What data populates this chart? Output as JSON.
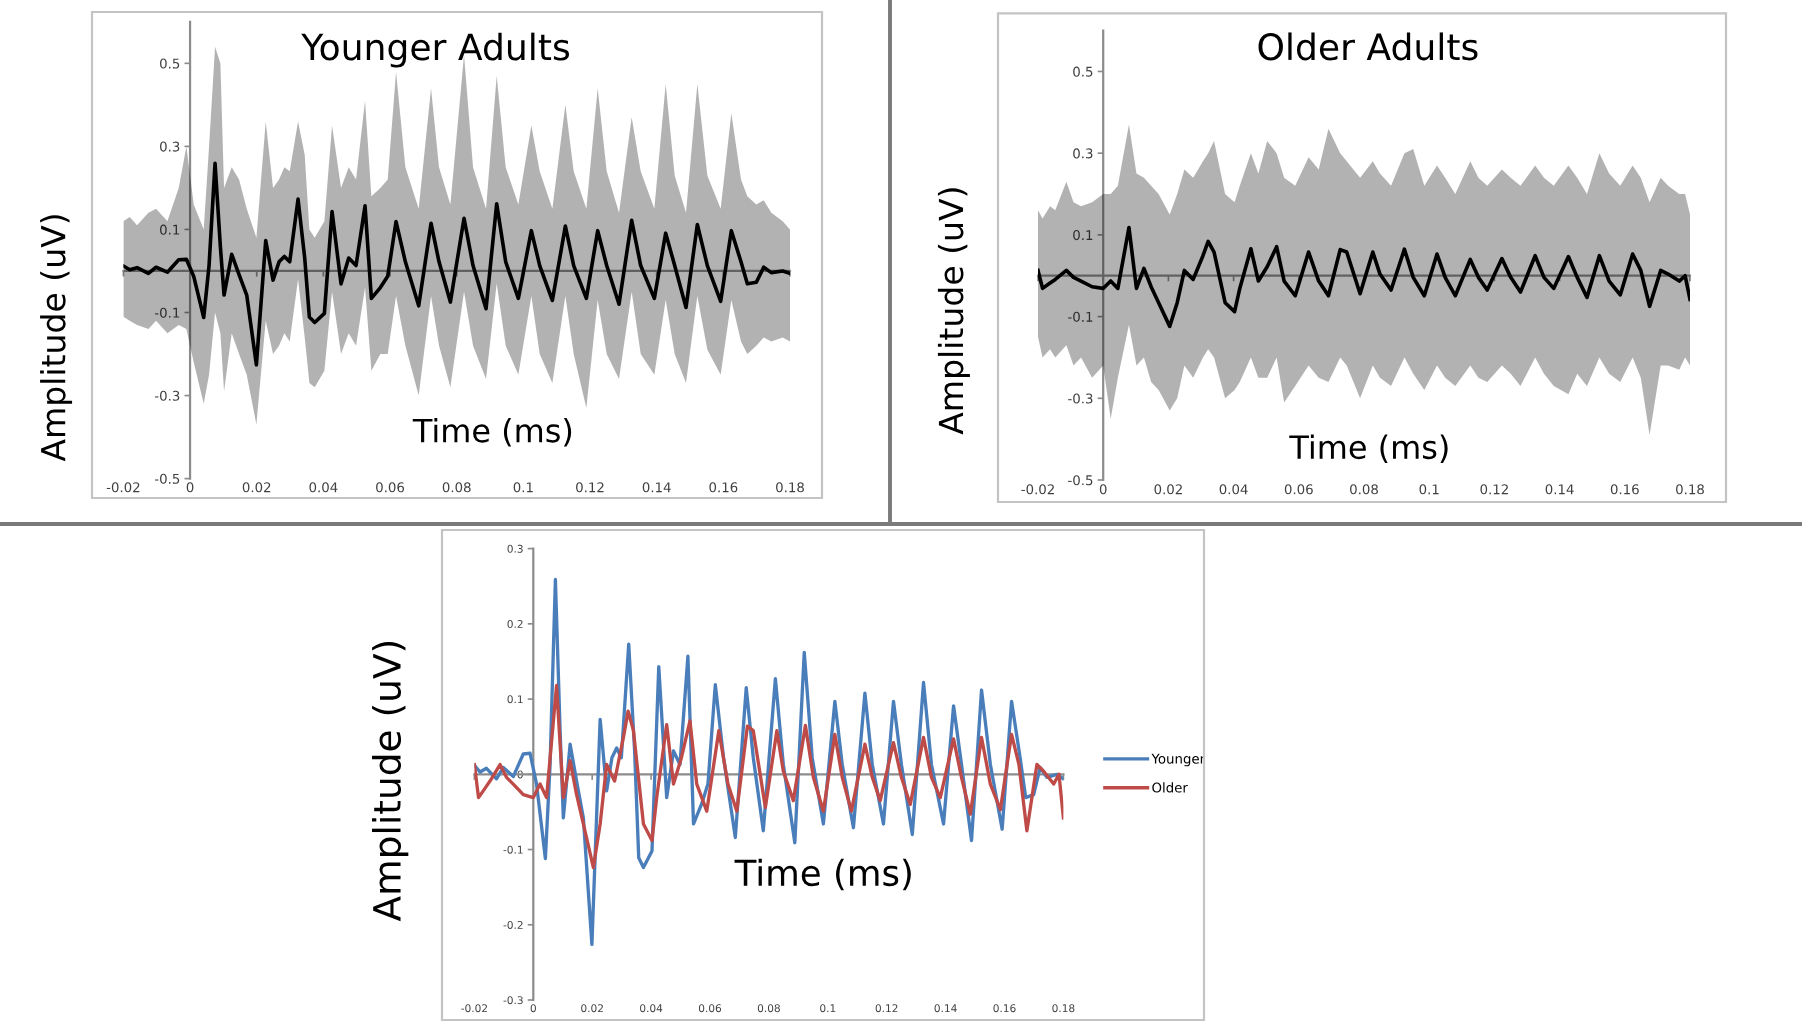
{
  "chart_data": [
    {
      "type": "line",
      "title": "Younger Adults",
      "xlabel": "Time (ms)",
      "ylabel": "Amplitude (uV)",
      "xlim": [
        -0.02,
        0.18
      ],
      "xticks": [
        -0.02,
        0,
        0.02,
        0.04,
        0.06,
        0.08,
        0.1,
        0.12,
        0.14,
        0.16,
        0.18
      ],
      "ylim": [
        -0.5,
        0.6
      ],
      "yticks": [
        -0.5,
        -0.3,
        -0.1,
        0.1,
        0.3,
        0.5
      ],
      "series": [
        {
          "color": "#000000",
          "x": [
            -0.02,
            -0.0181,
            -0.0159,
            -0.0125,
            -0.0102,
            -0.0068,
            -0.0034,
            -0.0011,
            0.0011,
            0.0041,
            0.0057,
            0.0075,
            0.0091,
            0.0102,
            0.0125,
            0.0147,
            0.017,
            0.0199,
            0.0227,
            0.0249,
            0.0267,
            0.0283,
            0.0299,
            0.0324,
            0.0344,
            0.0358,
            0.0374,
            0.0403,
            0.0426,
            0.0453,
            0.0476,
            0.0498,
            0.0525,
            0.0544,
            0.0571,
            0.0593,
            0.0618,
            0.0646,
            0.0686,
            0.0723,
            0.0747,
            0.0781,
            0.0822,
            0.0849,
            0.0888,
            0.092,
            0.0947,
            0.0985,
            0.1024,
            0.1049,
            0.1087,
            0.1126,
            0.1151,
            0.1189,
            0.1223,
            0.125,
            0.1287,
            0.1325,
            0.1352,
            0.1393,
            0.1427,
            0.1454,
            0.1488,
            0.1522,
            0.1552,
            0.1592,
            0.1624,
            0.1653,
            0.1672,
            0.1699,
            0.1721,
            0.1744,
            0.1778,
            0.18
          ],
          "values": [
            0.012,
            0.003,
            0.008,
            -0.006,
            0.009,
            -0.003,
            0.027,
            0.028,
            -0.013,
            -0.112,
            0.013,
            0.259,
            0.058,
            -0.058,
            0.04,
            -0.009,
            -0.058,
            -0.226,
            0.073,
            -0.022,
            0.022,
            0.035,
            0.022,
            0.173,
            0.031,
            -0.111,
            -0.124,
            -0.102,
            0.143,
            -0.031,
            0.031,
            0.013,
            0.157,
            -0.066,
            -0.04,
            -0.013,
            0.119,
            0.022,
            -0.084,
            0.115,
            0.022,
            -0.075,
            0.127,
            0.013,
            -0.091,
            0.162,
            0.022,
            -0.066,
            0.097,
            0.013,
            -0.071,
            0.108,
            0.013,
            -0.066,
            0.097,
            0.013,
            -0.08,
            0.122,
            0.013,
            -0.066,
            0.091,
            0.013,
            -0.088,
            0.112,
            0.013,
            -0.073,
            0.097,
            0.022,
            -0.031,
            -0.027,
            0.009,
            -0.004,
            0,
            -0.006
          ],
          "upper": [
            0.12,
            0.13,
            0.11,
            0.14,
            0.15,
            0.12,
            0.2,
            0.3,
            0.16,
            0.1,
            0.3,
            0.54,
            0.5,
            0.2,
            0.25,
            0.22,
            0.15,
            0.08,
            0.36,
            0.2,
            0.22,
            0.25,
            0.24,
            0.36,
            0.28,
            0.1,
            0.08,
            0.12,
            0.35,
            0.2,
            0.25,
            0.22,
            0.41,
            0.18,
            0.2,
            0.22,
            0.48,
            0.25,
            0.15,
            0.44,
            0.25,
            0.16,
            0.52,
            0.25,
            0.15,
            0.47,
            0.25,
            0.16,
            0.35,
            0.24,
            0.15,
            0.4,
            0.24,
            0.15,
            0.44,
            0.24,
            0.14,
            0.37,
            0.24,
            0.15,
            0.45,
            0.23,
            0.14,
            0.45,
            0.23,
            0.15,
            0.38,
            0.22,
            0.18,
            0.16,
            0.17,
            0.14,
            0.12,
            0.1
          ],
          "lower": [
            -0.11,
            -0.12,
            -0.13,
            -0.14,
            -0.12,
            -0.15,
            -0.13,
            -0.14,
            -0.22,
            -0.32,
            -0.25,
            -0.1,
            -0.15,
            -0.29,
            -0.15,
            -0.2,
            -0.25,
            -0.37,
            -0.12,
            -0.2,
            -0.18,
            -0.15,
            -0.17,
            -0.02,
            -0.16,
            -0.27,
            -0.28,
            -0.24,
            -0.05,
            -0.2,
            -0.15,
            -0.18,
            -0.04,
            -0.24,
            -0.2,
            -0.2,
            -0.06,
            -0.18,
            -0.3,
            -0.06,
            -0.18,
            -0.28,
            -0.05,
            -0.18,
            -0.26,
            -0.03,
            -0.18,
            -0.25,
            -0.06,
            -0.2,
            -0.27,
            -0.06,
            -0.2,
            -0.33,
            -0.07,
            -0.2,
            -0.26,
            -0.05,
            -0.2,
            -0.25,
            -0.07,
            -0.2,
            -0.27,
            -0.06,
            -0.19,
            -0.25,
            -0.07,
            -0.17,
            -0.2,
            -0.18,
            -0.16,
            -0.17,
            -0.16,
            -0.17
          ]
        }
      ]
    },
    {
      "type": "line",
      "title": "Older Adults",
      "xlabel": "Time (ms)",
      "ylabel": "Amplitude (uV)",
      "xlim": [
        -0.02,
        0.18
      ],
      "xticks": [
        -0.02,
        0,
        0.02,
        0.04,
        0.06,
        0.08,
        0.1,
        0.12,
        0.14,
        0.16,
        0.18
      ],
      "ylim": [
        -0.5,
        0.6
      ],
      "yticks": [
        -0.5,
        -0.3,
        -0.1,
        0.1,
        0.3,
        0.5
      ],
      "series": [
        {
          "color": "#000000",
          "x": [
            -0.02,
            -0.0186,
            -0.0163,
            -0.0147,
            -0.0113,
            -0.0091,
            -0.0068,
            -0.0034,
            0,
            0.0023,
            0.0045,
            0.0079,
            0.0102,
            0.0125,
            0.0147,
            0.017,
            0.0204,
            0.0227,
            0.0249,
            0.0276,
            0.0306,
            0.0322,
            0.034,
            0.0374,
            0.0403,
            0.0419,
            0.0453,
            0.0476,
            0.0503,
            0.0532,
            0.0555,
            0.0589,
            0.063,
            0.0661,
            0.0691,
            0.0727,
            0.0747,
            0.0788,
            0.0827,
            0.0849,
            0.0883,
            0.0924,
            0.0951,
            0.0985,
            0.1024,
            0.1049,
            0.108,
            0.1126,
            0.1151,
            0.1178,
            0.1223,
            0.125,
            0.128,
            0.1325,
            0.1352,
            0.1382,
            0.1427,
            0.1454,
            0.1484,
            0.1522,
            0.1552,
            0.1586,
            0.1624,
            0.1649,
            0.1676,
            0.171,
            0.1733,
            0.1767,
            0.1785,
            0.18
          ],
          "values": [
            0.013,
            -0.031,
            -0.018,
            -0.009,
            0.013,
            -0.004,
            -0.013,
            -0.027,
            -0.031,
            -0.013,
            -0.031,
            0.118,
            -0.031,
            0.018,
            -0.027,
            -0.066,
            -0.124,
            -0.066,
            0.013,
            -0.009,
            0.049,
            0.084,
            0.058,
            -0.066,
            -0.088,
            -0.031,
            0.066,
            -0.013,
            0.022,
            0.071,
            -0.013,
            -0.049,
            0.058,
            -0.013,
            -0.049,
            0.064,
            0.058,
            -0.044,
            0.058,
            0.004,
            -0.035,
            0.065,
            -0.004,
            -0.049,
            0.053,
            -0.004,
            -0.049,
            0.04,
            -0.004,
            -0.035,
            0.042,
            -0.004,
            -0.04,
            0.049,
            -0.004,
            -0.031,
            0.047,
            -0.004,
            -0.053,
            0.049,
            -0.013,
            -0.047,
            0.053,
            0.013,
            -0.075,
            0.013,
            0.004,
            -0.013,
            0,
            -0.058
          ],
          "upper": [
            0.16,
            0.14,
            0.17,
            0.16,
            0.23,
            0.18,
            0.17,
            0.18,
            0.2,
            0.2,
            0.22,
            0.37,
            0.25,
            0.24,
            0.22,
            0.2,
            0.15,
            0.2,
            0.26,
            0.24,
            0.28,
            0.3,
            0.33,
            0.2,
            0.18,
            0.22,
            0.3,
            0.25,
            0.33,
            0.3,
            0.24,
            0.22,
            0.29,
            0.26,
            0.36,
            0.3,
            0.28,
            0.24,
            0.28,
            0.25,
            0.22,
            0.3,
            0.31,
            0.22,
            0.27,
            0.24,
            0.2,
            0.28,
            0.24,
            0.22,
            0.26,
            0.24,
            0.22,
            0.27,
            0.24,
            0.22,
            0.27,
            0.24,
            0.2,
            0.3,
            0.25,
            0.22,
            0.27,
            0.24,
            0.18,
            0.24,
            0.22,
            0.2,
            0.2,
            0.15
          ],
          "lower": [
            -0.15,
            -0.2,
            -0.18,
            -0.2,
            -0.17,
            -0.22,
            -0.2,
            -0.25,
            -0.22,
            -0.35,
            -0.25,
            -0.12,
            -0.22,
            -0.2,
            -0.26,
            -0.28,
            -0.33,
            -0.3,
            -0.22,
            -0.25,
            -0.2,
            -0.18,
            -0.2,
            -0.3,
            -0.28,
            -0.26,
            -0.2,
            -0.25,
            -0.25,
            -0.2,
            -0.31,
            -0.27,
            -0.22,
            -0.25,
            -0.26,
            -0.2,
            -0.22,
            -0.3,
            -0.22,
            -0.25,
            -0.27,
            -0.2,
            -0.24,
            -0.28,
            -0.22,
            -0.25,
            -0.27,
            -0.22,
            -0.25,
            -0.26,
            -0.22,
            -0.24,
            -0.27,
            -0.2,
            -0.24,
            -0.27,
            -0.29,
            -0.24,
            -0.27,
            -0.2,
            -0.24,
            -0.26,
            -0.2,
            -0.25,
            -0.39,
            -0.22,
            -0.22,
            -0.23,
            -0.2,
            -0.22
          ]
        }
      ]
    },
    {
      "type": "line",
      "xlabel": "Time (ms)",
      "ylabel": "Amplitude (uV)",
      "legend": "right",
      "xlim": [
        -0.02,
        0.18
      ],
      "xticks": [
        -0.02,
        0,
        0.02,
        0.04,
        0.06,
        0.08,
        0.1,
        0.12,
        0.14,
        0.16,
        0.18
      ],
      "ylim": [
        -0.3,
        0.3
      ],
      "yticks": [
        -0.3,
        -0.2,
        -0.1,
        0,
        0.1,
        0.2,
        0.3
      ],
      "series": [
        {
          "name": "Younger",
          "color": "#4a7ebb",
          "x": [
            -0.02,
            -0.0181,
            -0.0159,
            -0.0125,
            -0.0102,
            -0.0068,
            -0.0034,
            -0.0011,
            0.0011,
            0.0041,
            0.0057,
            0.0075,
            0.0091,
            0.0102,
            0.0125,
            0.0147,
            0.017,
            0.0199,
            0.0227,
            0.0249,
            0.0267,
            0.0283,
            0.0299,
            0.0324,
            0.0344,
            0.0358,
            0.0374,
            0.0403,
            0.0426,
            0.0453,
            0.0476,
            0.0498,
            0.0525,
            0.0544,
            0.0571,
            0.0593,
            0.0618,
            0.0646,
            0.0686,
            0.0723,
            0.0747,
            0.0781,
            0.0822,
            0.0849,
            0.0888,
            0.092,
            0.0947,
            0.0985,
            0.1024,
            0.1049,
            0.1087,
            0.1126,
            0.1151,
            0.1189,
            0.1223,
            0.125,
            0.1287,
            0.1325,
            0.1352,
            0.1393,
            0.1427,
            0.1454,
            0.1488,
            0.1522,
            0.1552,
            0.1592,
            0.1624,
            0.1653,
            0.1672,
            0.1699,
            0.1721,
            0.1744,
            0.1778,
            0.18
          ],
          "values": [
            0.012,
            0.003,
            0.008,
            -0.006,
            0.009,
            -0.003,
            0.027,
            0.028,
            -0.013,
            -0.112,
            0.013,
            0.259,
            0.058,
            -0.058,
            0.04,
            -0.009,
            -0.058,
            -0.226,
            0.073,
            -0.022,
            0.022,
            0.035,
            0.022,
            0.173,
            0.031,
            -0.111,
            -0.124,
            -0.102,
            0.143,
            -0.031,
            0.031,
            0.013,
            0.157,
            -0.066,
            -0.04,
            -0.013,
            0.119,
            0.022,
            -0.084,
            0.115,
            0.022,
            -0.075,
            0.127,
            0.013,
            -0.091,
            0.162,
            0.022,
            -0.066,
            0.097,
            0.013,
            -0.071,
            0.108,
            0.013,
            -0.066,
            0.097,
            0.013,
            -0.08,
            0.122,
            0.013,
            -0.066,
            0.091,
            0.013,
            -0.088,
            0.112,
            0.013,
            -0.073,
            0.097,
            0.022,
            -0.031,
            -0.027,
            0.009,
            -0.004,
            0,
            -0.006
          ]
        },
        {
          "name": "Older",
          "color": "#be4b48",
          "x": [
            -0.02,
            -0.0186,
            -0.0163,
            -0.0147,
            -0.0113,
            -0.0091,
            -0.0068,
            -0.0034,
            0,
            0.0023,
            0.0045,
            0.0079,
            0.0102,
            0.0125,
            0.0147,
            0.017,
            0.0204,
            0.0227,
            0.0249,
            0.0276,
            0.0306,
            0.0322,
            0.034,
            0.0374,
            0.0403,
            0.0419,
            0.0453,
            0.0476,
            0.0503,
            0.0532,
            0.0555,
            0.0589,
            0.063,
            0.0661,
            0.0691,
            0.0727,
            0.0747,
            0.0788,
            0.0827,
            0.0849,
            0.0883,
            0.0924,
            0.0951,
            0.0985,
            0.1024,
            0.1049,
            0.108,
            0.1126,
            0.1151,
            0.1178,
            0.1223,
            0.125,
            0.128,
            0.1325,
            0.1352,
            0.1382,
            0.1427,
            0.1454,
            0.1484,
            0.1522,
            0.1552,
            0.1586,
            0.1624,
            0.1649,
            0.1676,
            0.171,
            0.1733,
            0.1767,
            0.1785,
            0.18
          ],
          "values": [
            0.013,
            -0.031,
            -0.018,
            -0.009,
            0.013,
            -0.004,
            -0.013,
            -0.027,
            -0.031,
            -0.013,
            -0.031,
            0.118,
            -0.031,
            0.018,
            -0.027,
            -0.066,
            -0.124,
            -0.066,
            0.013,
            -0.009,
            0.049,
            0.084,
            0.058,
            -0.066,
            -0.088,
            -0.031,
            0.066,
            -0.013,
            0.022,
            0.071,
            -0.013,
            -0.049,
            0.058,
            -0.013,
            -0.049,
            0.064,
            0.058,
            -0.044,
            0.058,
            0.004,
            -0.035,
            0.065,
            -0.004,
            -0.049,
            0.053,
            -0.004,
            -0.049,
            0.04,
            -0.004,
            -0.035,
            0.042,
            -0.004,
            -0.04,
            0.049,
            -0.004,
            -0.031,
            0.047,
            -0.004,
            -0.053,
            0.049,
            -0.013,
            -0.047,
            0.053,
            0.013,
            -0.075,
            0.013,
            0.004,
            -0.013,
            0,
            -0.058
          ]
        }
      ]
    }
  ]
}
